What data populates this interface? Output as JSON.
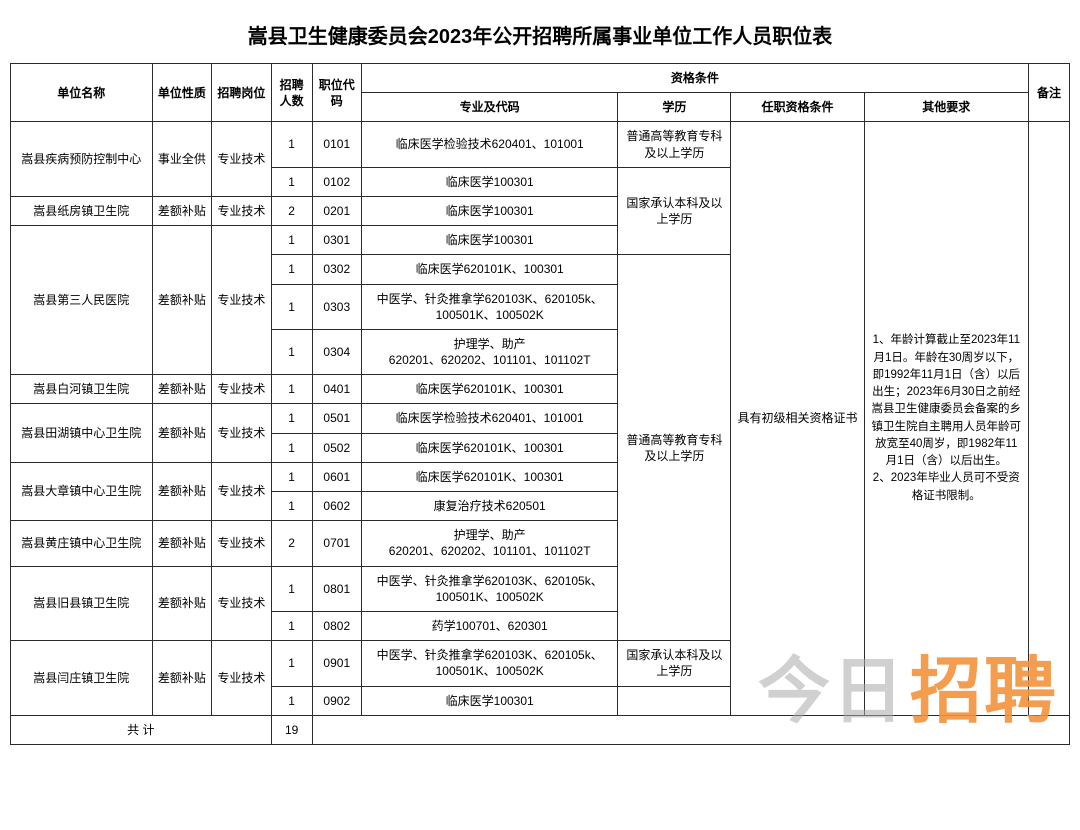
{
  "title": "嵩县卫生健康委员会2023年公开招聘所属事业单位工作人员职位表",
  "columns": {
    "unit": "单位名称",
    "nature": "单位性质",
    "post": "招聘岗位",
    "count": "招聘人数",
    "code": "职位代码",
    "qual_group": "资格条件",
    "major": "专业及代码",
    "education": "学历",
    "qualification": "任职资格条件",
    "other": "其他要求",
    "remark": "备注"
  },
  "education_values": {
    "college_up": "普通高等教育专科及以上学历",
    "national_bachelor_up": "国家承认本科及以上学历"
  },
  "qualification_value": "具有初级相关资格证书",
  "other_requirements": "1、年龄计算截止至2023年11月1日。年龄在30周岁以下，即1992年11月1日（含）以后出生；2023年6月30日之前经嵩县卫生健康委员会备案的乡镇卫生院自主聘用人员年龄可放宽至40周岁，即1982年11月1日（含）以后出生。\n2、2023年毕业人员可不受资格证书限制。",
  "units": [
    {
      "name": "嵩县疾病预防控制中心",
      "nature": "事业全供",
      "post": "专业技术",
      "rows": [
        {
          "count": "1",
          "code": "0101",
          "major": "临床医学检验技术620401、101001"
        },
        {
          "count": "1",
          "code": "0102",
          "major": "临床医学100301"
        }
      ]
    },
    {
      "name": "嵩县纸房镇卫生院",
      "nature": "差额补贴",
      "post": "专业技术",
      "rows": [
        {
          "count": "2",
          "code": "0201",
          "major": "临床医学100301"
        }
      ]
    },
    {
      "name": "嵩县第三人民医院",
      "nature": "差额补贴",
      "post": "专业技术",
      "rows": [
        {
          "count": "1",
          "code": "0301",
          "major": "临床医学100301"
        },
        {
          "count": "1",
          "code": "0302",
          "major": "临床医学620101K、100301"
        },
        {
          "count": "1",
          "code": "0303",
          "major": "中医学、针灸推拿学620103K、620105k、100501K、100502K"
        },
        {
          "count": "1",
          "code": "0304",
          "major": "护理学、助产\n620201、620202、101101、101102T"
        }
      ]
    },
    {
      "name": "嵩县白河镇卫生院",
      "nature": "差额补贴",
      "post": "专业技术",
      "rows": [
        {
          "count": "1",
          "code": "0401",
          "major": "临床医学620101K、100301"
        }
      ]
    },
    {
      "name": "嵩县田湖镇中心卫生院",
      "nature": "差额补贴",
      "post": "专业技术",
      "rows": [
        {
          "count": "1",
          "code": "0501",
          "major": "临床医学检验技术620401、101001"
        },
        {
          "count": "1",
          "code": "0502",
          "major": "临床医学620101K、100301"
        }
      ]
    },
    {
      "name": "嵩县大章镇中心卫生院",
      "nature": "差额补贴",
      "post": "专业技术",
      "rows": [
        {
          "count": "1",
          "code": "0601",
          "major": "临床医学620101K、100301"
        },
        {
          "count": "1",
          "code": "0602",
          "major": "康复治疗技术620501"
        }
      ]
    },
    {
      "name": "嵩县黄庄镇中心卫生院",
      "nature": "差额补贴",
      "post": "专业技术",
      "rows": [
        {
          "count": "2",
          "code": "0701",
          "major": "护理学、助产\n620201、620202、101101、101102T"
        }
      ]
    },
    {
      "name": "嵩县旧县镇卫生院",
      "nature": "差额补贴",
      "post": "专业技术",
      "rows": [
        {
          "count": "1",
          "code": "0801",
          "major": "中医学、针灸推拿学620103K、620105k、100501K、100502K"
        },
        {
          "count": "1",
          "code": "0802",
          "major": "药学100701、620301"
        }
      ]
    },
    {
      "name": "嵩县闫庄镇卫生院",
      "nature": "差额补贴",
      "post": "专业技术",
      "rows": [
        {
          "count": "1",
          "code": "0901",
          "major": "中医学、针灸推拿学620103K、620105k、100501K、100502K"
        },
        {
          "count": "1",
          "code": "0902",
          "major": "临床医学100301"
        }
      ]
    }
  ],
  "total_label": "共 计",
  "total_count": "19",
  "watermark": {
    "a": "今日",
    "b": "招聘"
  }
}
